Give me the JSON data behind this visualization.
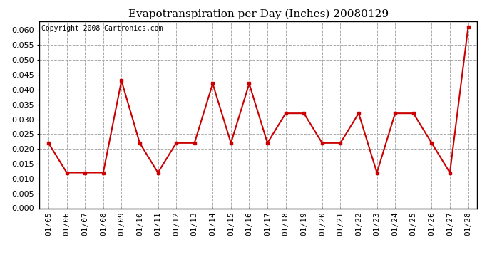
{
  "title": "Evapotranspiration per Day (Inches) 20080129",
  "copyright_text": "Copyright 2008 Cartronics.com",
  "dates": [
    "01/05",
    "01/06",
    "01/07",
    "01/08",
    "01/09",
    "01/10",
    "01/11",
    "01/12",
    "01/13",
    "01/14",
    "01/15",
    "01/16",
    "01/17",
    "01/18",
    "01/19",
    "01/20",
    "01/21",
    "01/22",
    "01/23",
    "01/24",
    "01/25",
    "01/26",
    "01/27",
    "01/28"
  ],
  "values": [
    0.022,
    0.012,
    0.012,
    0.012,
    0.043,
    0.022,
    0.012,
    0.022,
    0.022,
    0.042,
    0.022,
    0.042,
    0.022,
    0.032,
    0.032,
    0.022,
    0.022,
    0.032,
    0.012,
    0.032,
    0.032,
    0.022,
    0.012,
    0.061
  ],
  "line_color": "#cc0000",
  "marker": "s",
  "marker_size": 3,
  "marker_color": "#cc0000",
  "ylim": [
    0.0,
    0.063
  ],
  "ytick_step": 0.005,
  "grid_color": "#aaaaaa",
  "grid_style": "--",
  "background_color": "#ffffff",
  "fig_width": 6.9,
  "fig_height": 3.75,
  "title_fontsize": 11,
  "copyright_fontsize": 7,
  "tick_fontsize": 8,
  "ytick_fontsize": 8
}
